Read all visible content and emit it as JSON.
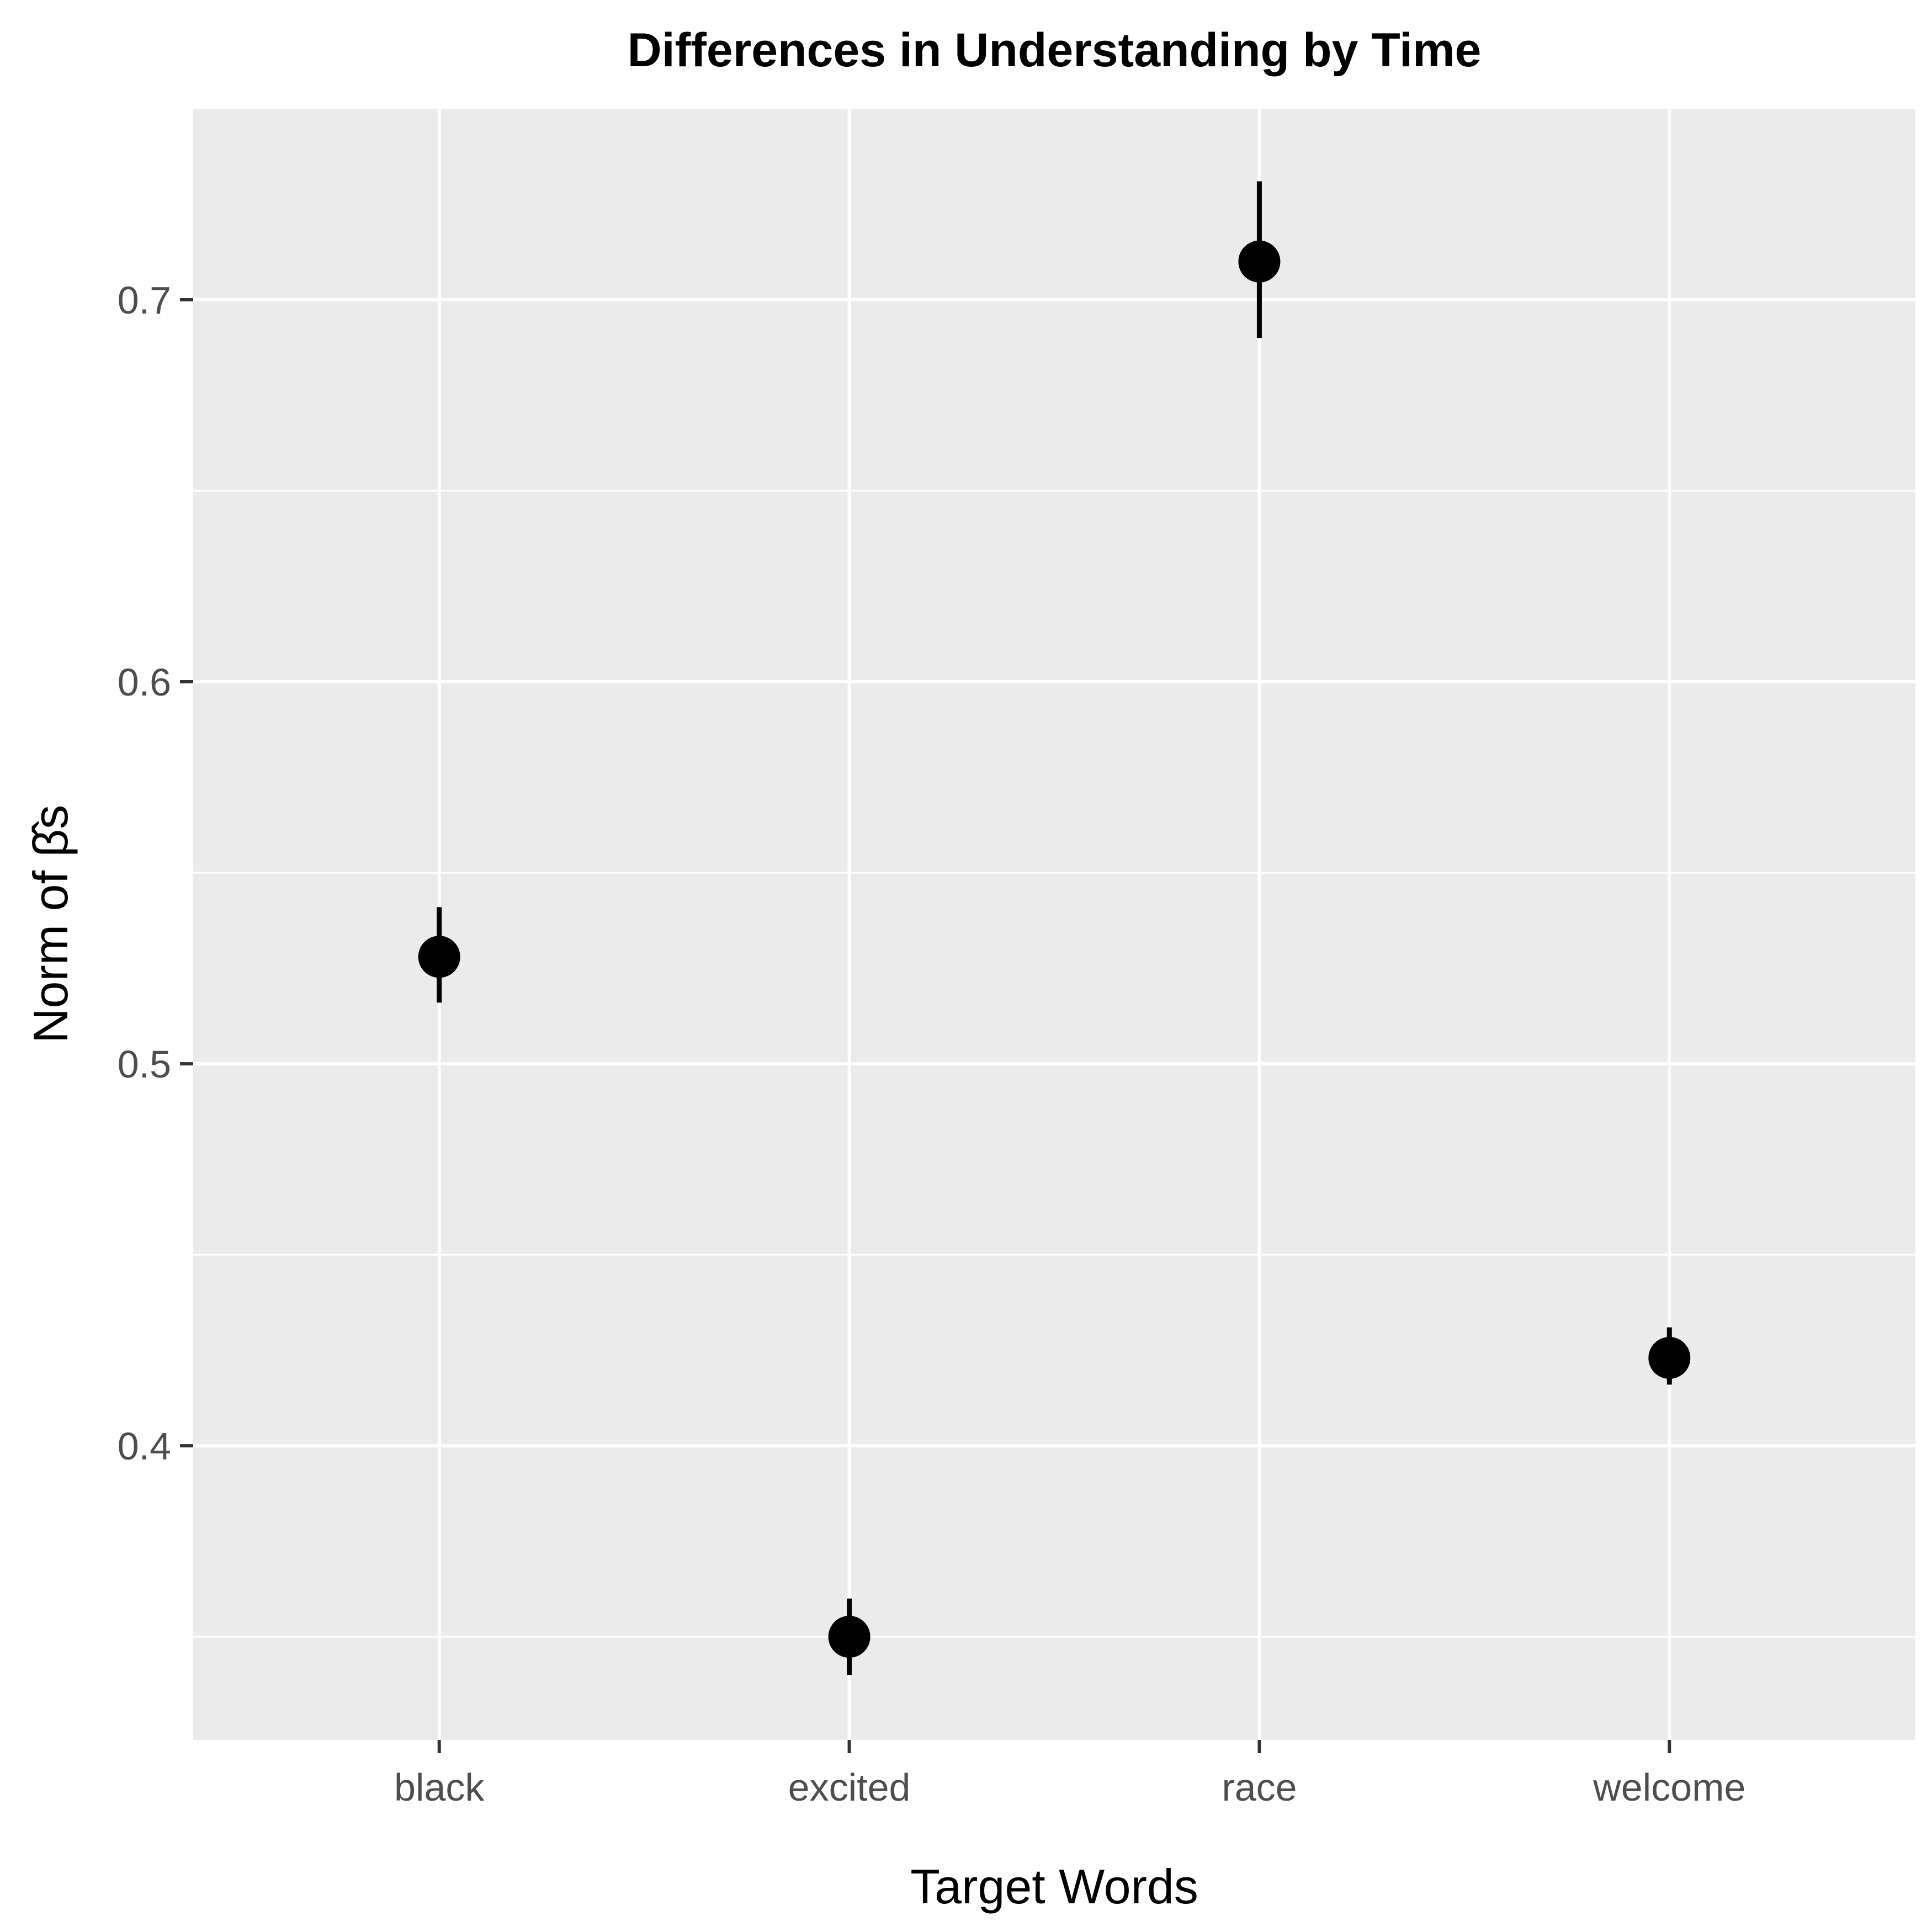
{
  "chart_data": {
    "type": "scatter",
    "title": "Differences in Understanding by Time",
    "xlabel": "Target Words",
    "ylabel": "Norm of β̂s",
    "categories": [
      "black",
      "excited",
      "race",
      "welcome"
    ],
    "values": [
      0.528,
      0.35,
      0.71,
      0.423
    ],
    "error_lower": [
      0.516,
      0.34,
      0.69,
      0.416
    ],
    "error_upper": [
      0.541,
      0.36,
      0.731,
      0.431
    ],
    "ylim": [
      0.323,
      0.75
    ],
    "yticks": [
      0.4,
      0.5,
      0.6,
      0.7
    ],
    "ytick_labels": [
      "0.4",
      "0.5",
      "0.6",
      "0.7"
    ],
    "grid": true,
    "legend": "none",
    "colors": {
      "panel_background": "#ebebeb",
      "grid": "#ffffff",
      "marker": "#000000",
      "tick_label": "#4d4d4d"
    }
  }
}
